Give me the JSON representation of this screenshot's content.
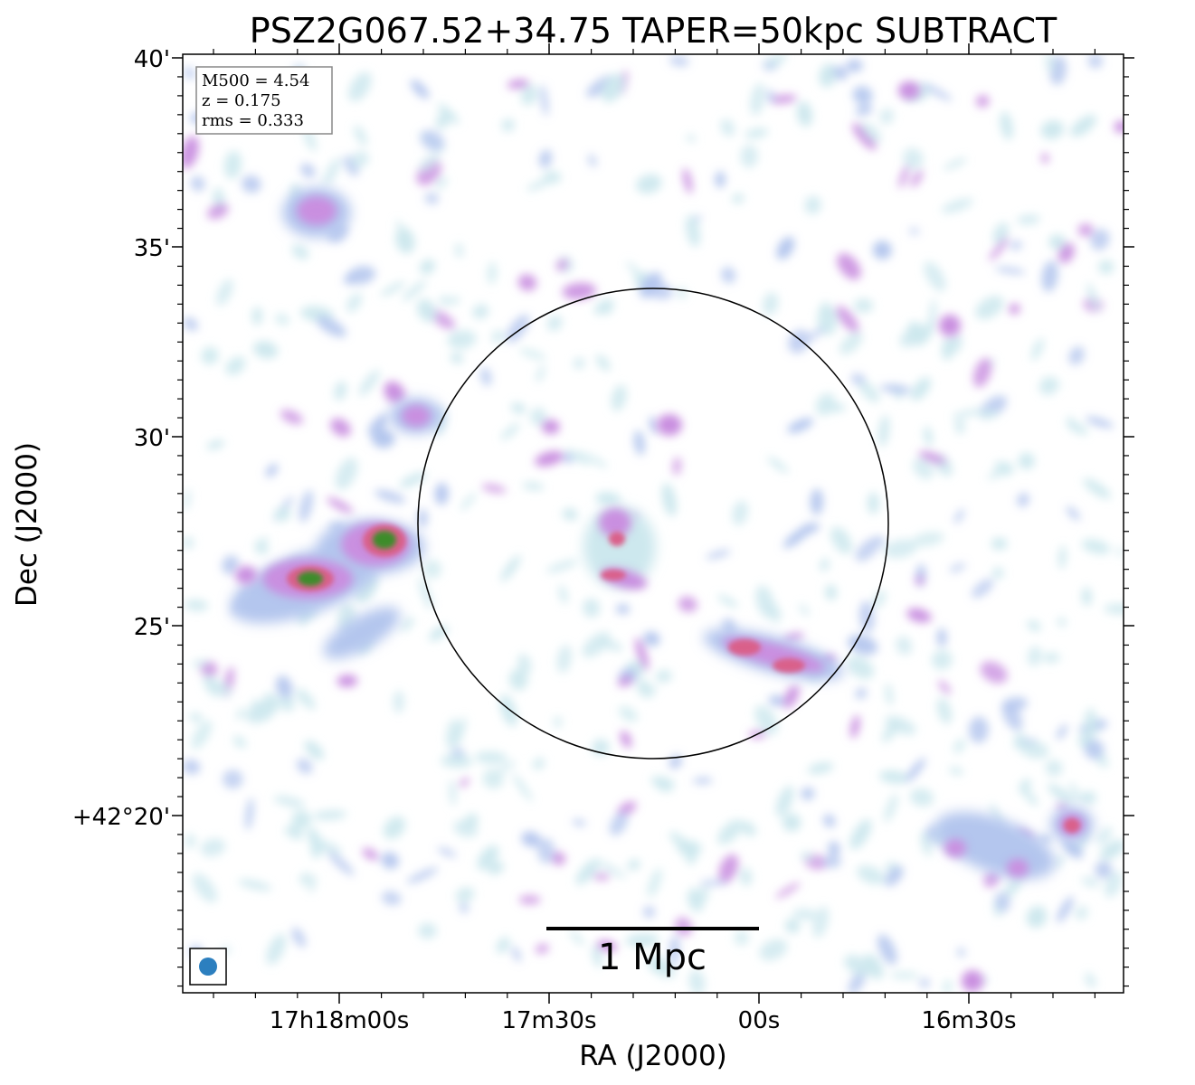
{
  "chart_data": {
    "type": "heatmap",
    "title": "PSZ2G067.52+34.75 TAPER=50kpc SUBTRACT",
    "xlabel": "RA (J2000)",
    "ylabel": "Dec (J2000)",
    "x_ticks": [
      "17h18m00s",
      "17m30s",
      "00s",
      "16m30s"
    ],
    "y_ticks": [
      "40'",
      "35'",
      "30'",
      "25'",
      "+42°20'"
    ],
    "info_box": [
      "M500 = 4.54",
      "z = 0.175",
      "rms = 0.333"
    ],
    "scale_bar_label": "1 Mpc",
    "colormap": [
      "#cde8ee",
      "#b4c6ee",
      "#c98fe0",
      "#d9608a",
      "#3c8c2a"
    ],
    "beam_color": "#2c7fbf",
    "sources": [
      {
        "ra": "17h17m59s",
        "dec": "+42°27.3'",
        "peak": "high"
      },
      {
        "ra": "17h18m09s",
        "dec": "+42°26.2'",
        "peak": "high"
      },
      {
        "ra": "17h17m21s",
        "dec": "+42°26.7'",
        "peak": "medium"
      },
      {
        "ra": "17h17m20s",
        "dec": "+42°27.5'",
        "peak": "medium"
      },
      {
        "ra": "17h17m05s",
        "dec": "+42°24.6'",
        "peak": "medium"
      },
      {
        "ra": "17h16m57s",
        "dec": "+42°24.0'",
        "peak": "medium"
      },
      {
        "ra": "17h16m22s",
        "dec": "+42°19.6'",
        "peak": "medium"
      }
    ]
  }
}
